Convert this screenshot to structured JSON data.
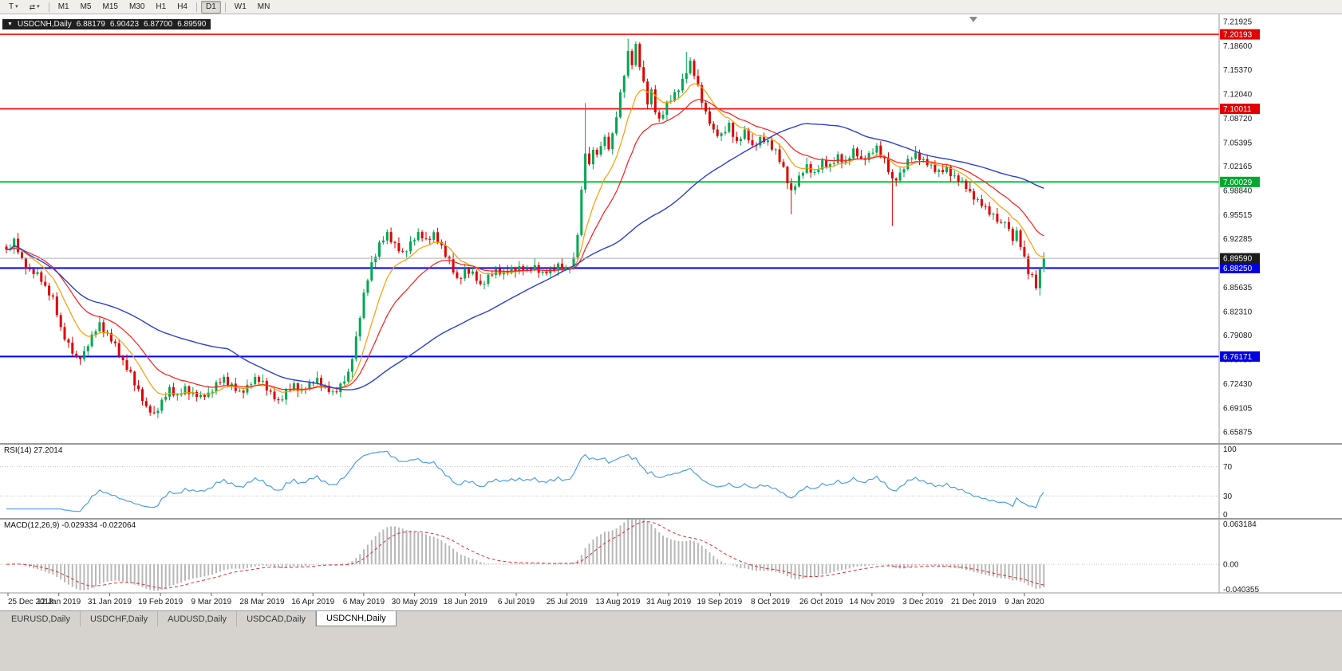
{
  "toolbar": {
    "tool1_label": "T",
    "caret": "▾",
    "arrows_glyph": "⇄",
    "timeframes": [
      {
        "label": "M1"
      },
      {
        "label": "M5"
      },
      {
        "label": "M15"
      },
      {
        "label": "M30"
      },
      {
        "label": "H1"
      },
      {
        "label": "H4",
        "sep_after": true
      },
      {
        "label": "D1",
        "active": true,
        "sep_after": true
      },
      {
        "label": "W1"
      },
      {
        "label": "MN"
      }
    ]
  },
  "chart_header": {
    "collapse_icon": "▼",
    "symbol": "USDCNH,Daily",
    "open": "6.88179",
    "high": "6.90423",
    "low": "6.87700",
    "close": "6.89590"
  },
  "tabs": {
    "items": [
      {
        "label": "EURUSD,Daily"
      },
      {
        "label": "USDCHF,Daily"
      },
      {
        "label": "AUDUSD,Daily"
      },
      {
        "label": "USDCAD,Daily"
      },
      {
        "label": "USDCNH,Daily",
        "active": true
      }
    ]
  },
  "chart_data": {
    "type": "candlestick",
    "symbol": "USDCNH",
    "timeframe": "Daily",
    "colors": {
      "background": "#ffffff",
      "axis_text": "#1a1a1a",
      "up": "#00a651",
      "down": "#e00000"
    },
    "price_range": {
      "max": 7.2271,
      "min": 6.6434
    },
    "price_axis_ticks": [
      7.21925,
      7.186,
      7.1537,
      7.1204,
      7.0872,
      7.05395,
      7.02165,
      6.9884,
      6.95515,
      6.92285,
      6.8896,
      6.85635,
      6.8231,
      6.7908,
      6.7575,
      6.7243,
      6.69105,
      6.65875
    ],
    "x_labels": [
      "25 Dec 2018",
      "12 Jan 2019",
      "31 Jan 2019",
      "19 Feb 2019",
      "9 Mar 2019",
      "28 Mar 2019",
      "16 Apr 2019",
      "6 May 2019",
      "30 May 2019",
      "18 Jun 2019",
      "6 Jul 2019",
      "25 Jul 2019",
      "13 Aug 2019",
      "31 Aug 2019",
      "19 Sep 2019",
      "8 Oct 2019",
      "26 Oct 2019",
      "14 Nov 2019",
      "3 Dec 2019",
      "21 Dec 2019",
      "9 Jan 2020"
    ],
    "horizontal_lines": [
      {
        "price": 7.20193,
        "color": "#ff0000",
        "width": 1.6,
        "tag_bg": "#e00000"
      },
      {
        "price": 7.10011,
        "color": "#ff0000",
        "width": 1.6,
        "tag_bg": "#e00000"
      },
      {
        "price": 7.00029,
        "color": "#00cc33",
        "width": 2,
        "tag_bg": "#00a82e"
      },
      {
        "price": 6.8825,
        "color": "#0000ff",
        "width": 2,
        "tag_bg": "#0000e0"
      },
      {
        "price": 6.76171,
        "color": "#0000ff",
        "width": 2,
        "tag_bg": "#0000e0"
      }
    ],
    "current_price": {
      "price": 6.8959,
      "line_color": "#b0b0b0",
      "tag_bg": "#1c1c1c"
    },
    "candles_spec": {
      "n": 268,
      "close_anchors": [
        [
          0,
          6.906
        ],
        [
          2,
          6.918
        ],
        [
          4,
          6.893
        ],
        [
          6,
          6.88
        ],
        [
          8,
          6.873
        ],
        [
          10,
          6.856
        ],
        [
          12,
          6.842
        ],
        [
          14,
          6.8
        ],
        [
          16,
          6.776
        ],
        [
          18,
          6.758
        ],
        [
          20,
          6.768
        ],
        [
          22,
          6.788
        ],
        [
          24,
          6.806
        ],
        [
          26,
          6.792
        ],
        [
          28,
          6.778
        ],
        [
          30,
          6.752
        ],
        [
          32,
          6.738
        ],
        [
          34,
          6.716
        ],
        [
          36,
          6.69
        ],
        [
          38,
          6.682
        ],
        [
          40,
          6.701
        ],
        [
          42,
          6.718
        ],
        [
          44,
          6.705
        ],
        [
          46,
          6.718
        ],
        [
          48,
          6.712
        ],
        [
          50,
          6.705
        ],
        [
          52,
          6.71
        ],
        [
          54,
          6.725
        ],
        [
          56,
          6.732
        ],
        [
          58,
          6.72
        ],
        [
          60,
          6.712
        ],
        [
          62,
          6.722
        ],
        [
          64,
          6.73
        ],
        [
          66,
          6.726
        ],
        [
          68,
          6.712
        ],
        [
          70,
          6.7
        ],
        [
          72,
          6.712
        ],
        [
          74,
          6.722
        ],
        [
          76,
          6.716
        ],
        [
          78,
          6.722
        ],
        [
          80,
          6.73
        ],
        [
          82,
          6.72
        ],
        [
          84,
          6.712
        ],
        [
          86,
          6.72
        ],
        [
          88,
          6.738
        ],
        [
          90,
          6.788
        ],
        [
          92,
          6.845
        ],
        [
          94,
          6.888
        ],
        [
          96,
          6.916
        ],
        [
          98,
          6.93
        ],
        [
          100,
          6.912
        ],
        [
          102,
          6.902
        ],
        [
          104,
          6.918
        ],
        [
          106,
          6.928
        ],
        [
          108,
          6.92
        ],
        [
          110,
          6.93
        ],
        [
          112,
          6.912
        ],
        [
          114,
          6.89
        ],
        [
          116,
          6.866
        ],
        [
          118,
          6.88
        ],
        [
          120,
          6.874
        ],
        [
          122,
          6.858
        ],
        [
          124,
          6.872
        ],
        [
          126,
          6.88
        ],
        [
          128,
          6.874
        ],
        [
          130,
          6.88
        ],
        [
          132,
          6.884
        ],
        [
          134,
          6.878
        ],
        [
          136,
          6.884
        ],
        [
          138,
          6.876
        ],
        [
          140,
          6.88
        ],
        [
          142,
          6.884
        ],
        [
          144,
          6.88
        ],
        [
          146,
          6.896
        ],
        [
          147,
          6.93
        ],
        [
          148,
          6.986
        ],
        [
          149,
          7.04
        ],
        [
          150,
          7.022
        ],
        [
          151,
          7.048
        ],
        [
          152,
          7.036
        ],
        [
          153,
          7.052
        ],
        [
          154,
          7.06
        ],
        [
          155,
          7.048
        ],
        [
          156,
          7.062
        ],
        [
          157,
          7.09
        ],
        [
          158,
          7.12
        ],
        [
          159,
          7.15
        ],
        [
          160,
          7.178
        ],
        [
          161,
          7.162
        ],
        [
          162,
          7.185
        ],
        [
          163,
          7.158
        ],
        [
          164,
          7.135
        ],
        [
          165,
          7.11
        ],
        [
          166,
          7.125
        ],
        [
          167,
          7.098
        ],
        [
          168,
          7.085
        ],
        [
          170,
          7.105
        ],
        [
          172,
          7.12
        ],
        [
          174,
          7.14
        ],
        [
          176,
          7.162
        ],
        [
          178,
          7.13
        ],
        [
          180,
          7.095
        ],
        [
          182,
          7.07
        ],
        [
          184,
          7.062
        ],
        [
          186,
          7.078
        ],
        [
          188,
          7.055
        ],
        [
          190,
          7.068
        ],
        [
          192,
          7.048
        ],
        [
          194,
          7.06
        ],
        [
          196,
          7.055
        ],
        [
          198,
          7.04
        ],
        [
          200,
          7.018
        ],
        [
          202,
          6.988
        ],
        [
          204,
          7.005
        ],
        [
          206,
          7.022
        ],
        [
          208,
          7.012
        ],
        [
          210,
          7.028
        ],
        [
          212,
          7.02
        ],
        [
          214,
          7.035
        ],
        [
          216,
          7.028
        ],
        [
          218,
          7.042
        ],
        [
          220,
          7.03
        ],
        [
          222,
          7.038
        ],
        [
          224,
          7.048
        ],
        [
          226,
          7.028
        ],
        [
          228,
          7.002
        ],
        [
          230,
          7.012
        ],
        [
          232,
          7.028
        ],
        [
          234,
          7.038
        ],
        [
          236,
          7.03
        ],
        [
          238,
          7.022
        ],
        [
          240,
          7.012
        ],
        [
          242,
          7.018
        ],
        [
          244,
          7.008
        ],
        [
          246,
          6.998
        ],
        [
          248,
          6.985
        ],
        [
          250,
          6.975
        ],
        [
          252,
          6.965
        ],
        [
          254,
          6.952
        ],
        [
          256,
          6.942
        ],
        [
          257,
          6.95
        ],
        [
          258,
          6.935
        ],
        [
          259,
          6.922
        ],
        [
          260,
          6.93
        ],
        [
          261,
          6.912
        ],
        [
          262,
          6.896
        ],
        [
          263,
          6.878
        ],
        [
          264,
          6.872
        ],
        [
          265,
          6.858
        ],
        [
          266,
          6.879
        ],
        [
          267,
          6.896
        ]
      ],
      "noise": {
        "close_pattern": [
          0.35,
          -0.55,
          0.85,
          -0.25,
          0.55,
          -0.85,
          0.2,
          -0.4,
          0.7,
          -0.15,
          0.45,
          -0.7,
          0.3,
          -0.5
        ],
        "close_amp": 0.0055,
        "wick_up": [
          0.0035,
          0.006,
          0.002,
          0.008,
          0.004,
          0.0015,
          0.007,
          0.003,
          0.005,
          0.0025,
          0.009,
          0.004,
          0.003,
          0.006
        ],
        "wick_dn": [
          0.005,
          0.0025,
          0.007,
          0.003,
          0.0018,
          0.008,
          0.0035,
          0.006,
          0.0022,
          0.0045,
          0.002,
          0.007,
          0.004,
          0.003
        ]
      },
      "overrides": [
        {
          "i": 149,
          "h": 7.108
        },
        {
          "i": 160,
          "h": 7.196
        },
        {
          "i": 162,
          "h": 7.192
        },
        {
          "i": 175,
          "h": 7.178
        },
        {
          "i": 202,
          "l": 6.956
        },
        {
          "i": 228,
          "l": 6.94
        },
        {
          "i": 266,
          "l": 6.845
        },
        {
          "i": 267,
          "o": 6.88179,
          "h": 6.90423,
          "l": 6.877,
          "c": 6.8959
        }
      ]
    },
    "indicators": {
      "moving_averages": [
        {
          "type": "ema",
          "period": 10,
          "color": "#ff9c00",
          "width": 1.2
        },
        {
          "type": "ema",
          "period": 21,
          "color": "#ff1a1a",
          "width": 1.2
        },
        {
          "type": "sma",
          "period": 58,
          "color": "#2b3fd0",
          "width": 1.4
        }
      ],
      "rsi": {
        "period": 14,
        "current": 27.2014,
        "value_label": "RSI(14) 27.2014",
        "line_color": "#4d9ee8",
        "axis_labels": [
          100,
          70,
          30,
          0
        ],
        "levels_dotted": [
          70,
          30
        ]
      },
      "macd": {
        "fast": 12,
        "slow": 26,
        "signal": 9,
        "current_main": -0.029334,
        "current_signal": -0.022064,
        "label": "MACD(12,26,9) -0.029334 -0.022064",
        "range": [
          0.063184,
          -0.040355
        ],
        "axis_labels": [
          {
            "value": 0.063184,
            "text": "0.063184"
          },
          {
            "value": 0,
            "text": "0.00"
          },
          {
            "value": -0.040355,
            "text": "-0.040355"
          }
        ],
        "bar_color": "#b8b8b8",
        "signal_color": "#e03030"
      }
    }
  }
}
